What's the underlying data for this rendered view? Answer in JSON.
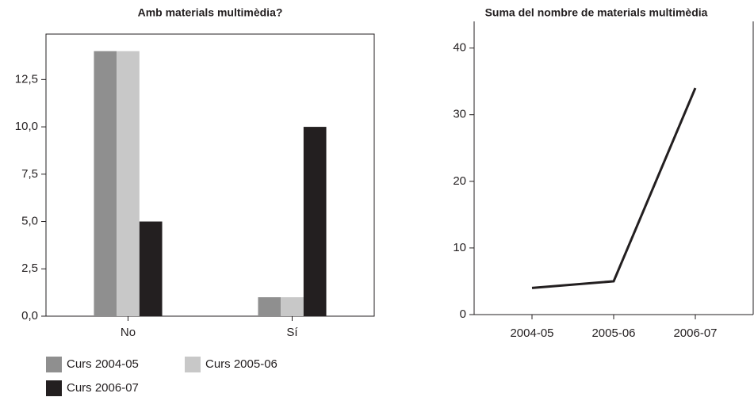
{
  "chart_data": [
    {
      "type": "bar",
      "title": "Amb materials multimèdia?",
      "categories": [
        "No",
        "Sí"
      ],
      "series": [
        {
          "name": "Curs 2004-05",
          "color": "#8f8f8f",
          "values": [
            14,
            1
          ]
        },
        {
          "name": "Curs 2005-06",
          "color": "#c8c8c8",
          "values": [
            14,
            1
          ]
        },
        {
          "name": "Curs 2006-07",
          "color": "#231f20",
          "values": [
            5,
            10
          ]
        }
      ],
      "ylim": [
        0,
        14.9
      ],
      "yticks": [
        {
          "value": 0,
          "label": "0,0"
        },
        {
          "value": 2.5,
          "label": "2,5"
        },
        {
          "value": 5,
          "label": "5,0"
        },
        {
          "value": 7.5,
          "label": "7,5"
        },
        {
          "value": 10,
          "label": "10,0"
        },
        {
          "value": 12.5,
          "label": "12,5"
        }
      ],
      "legend": "bottom"
    },
    {
      "type": "line",
      "title": "Suma del nombre de materials multimèdia",
      "categories": [
        "2004-05",
        "2005-06",
        "2006-07"
      ],
      "values": [
        4,
        5,
        34
      ],
      "color": "#231f20",
      "ylim": [
        0,
        44
      ],
      "yticks": [
        0,
        10,
        20,
        30,
        40
      ]
    }
  ]
}
